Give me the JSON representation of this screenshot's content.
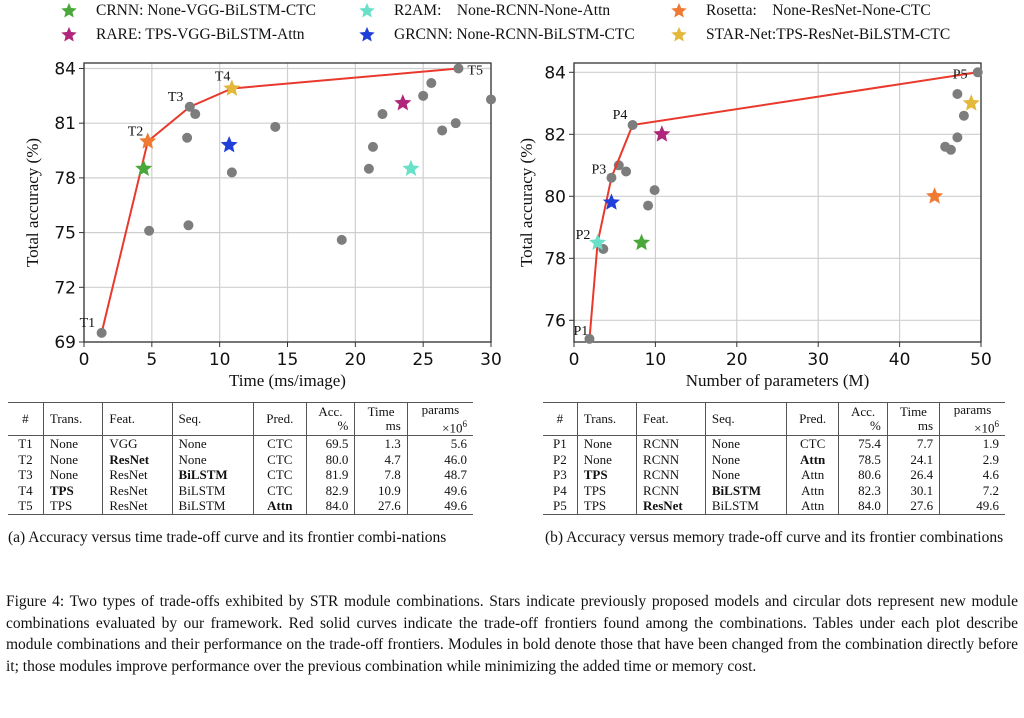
{
  "legend": [
    {
      "name": "CRNN",
      "label": "CRNN: None-VGG-BiLSTM-CTC",
      "color": "#4aa83a"
    },
    {
      "name": "RARE",
      "label": "RARE: TPS-VGG-BiLSTM-Attn",
      "color": "#b0267a"
    },
    {
      "name": "R2AM",
      "label": "R2AM:    None-RCNN-None-Attn",
      "color": "#6be0c8"
    },
    {
      "name": "GRCNN",
      "label": "GRCNN: None-RCNN-BiLSTM-CTC",
      "color": "#1f3fd8"
    },
    {
      "name": "Rosetta",
      "label": "Rosetta:    None-ResNet-None-CTC",
      "color": "#ee7a33"
    },
    {
      "name": "STAR-Net",
      "label": "STAR-Net:TPS-ResNet-BiLSTM-CTC",
      "color": "#e3b83b"
    }
  ],
  "chart_data": [
    {
      "type": "scatter",
      "title": "",
      "xlabel": "Time (ms/image)",
      "ylabel": "Total accuracy (%)",
      "xlim": [
        0,
        30
      ],
      "ylim": [
        69,
        84.3
      ],
      "xticks": [
        "0",
        "5",
        "10",
        "15",
        "20",
        "25",
        "30"
      ],
      "yticks": [
        "69",
        "72",
        "75",
        "78",
        "81",
        "84"
      ],
      "grid": true,
      "frontier_color": "#e8392c",
      "frontier": [
        {
          "label": "T1",
          "x": 1.3,
          "y": 69.5
        },
        {
          "label": "T2",
          "x": 4.7,
          "y": 80.0
        },
        {
          "label": "T3",
          "x": 7.8,
          "y": 81.9
        },
        {
          "label": "T4",
          "x": 10.9,
          "y": 82.9
        },
        {
          "label": "T5",
          "x": 27.6,
          "y": 84.0
        }
      ],
      "dots": [
        {
          "x": 4.8,
          "y": 75.1
        },
        {
          "x": 7.7,
          "y": 75.4
        },
        {
          "x": 7.6,
          "y": 80.2
        },
        {
          "x": 8.2,
          "y": 81.5
        },
        {
          "x": 10.9,
          "y": 78.3
        },
        {
          "x": 14.1,
          "y": 80.8
        },
        {
          "x": 19.0,
          "y": 74.6
        },
        {
          "x": 21.0,
          "y": 78.5
        },
        {
          "x": 21.3,
          "y": 79.7
        },
        {
          "x": 22.0,
          "y": 81.5
        },
        {
          "x": 25.0,
          "y": 82.5
        },
        {
          "x": 25.6,
          "y": 83.2
        },
        {
          "x": 26.4,
          "y": 80.6
        },
        {
          "x": 27.4,
          "y": 81.0
        },
        {
          "x": 30.0,
          "y": 82.3
        }
      ],
      "stars": [
        {
          "model": "CRNN",
          "x": 4.4,
          "y": 78.5
        },
        {
          "model": "Rosetta",
          "x": 4.7,
          "y": 80.0
        },
        {
          "model": "STAR-Net",
          "x": 10.9,
          "y": 82.9
        },
        {
          "model": "GRCNN",
          "x": 10.7,
          "y": 79.8
        },
        {
          "model": "RARE",
          "x": 23.5,
          "y": 82.1
        },
        {
          "model": "R2AM",
          "x": 24.1,
          "y": 78.5
        }
      ]
    },
    {
      "type": "scatter",
      "title": "",
      "xlabel": "Number of parameters (M)",
      "ylabel": "Total accuracy (%)",
      "xlim": [
        0,
        50
      ],
      "ylim": [
        75.3,
        84.3
      ],
      "xticks": [
        "0",
        "10",
        "20",
        "30",
        "40",
        "50"
      ],
      "yticks": [
        "76",
        "78",
        "80",
        "82",
        "84"
      ],
      "grid": true,
      "frontier_color": "#e8392c",
      "frontier": [
        {
          "label": "P1",
          "x": 1.9,
          "y": 75.4
        },
        {
          "label": "P2",
          "x": 2.9,
          "y": 78.5
        },
        {
          "label": "P3",
          "x": 4.6,
          "y": 80.6
        },
        {
          "label": "P4",
          "x": 7.2,
          "y": 82.3
        },
        {
          "label": "P5",
          "x": 49.6,
          "y": 84.0
        }
      ],
      "dots": [
        {
          "x": 3.6,
          "y": 78.3
        },
        {
          "x": 5.5,
          "y": 81.0
        },
        {
          "x": 6.4,
          "y": 80.8
        },
        {
          "x": 9.1,
          "y": 79.7
        },
        {
          "x": 9.9,
          "y": 80.2
        },
        {
          "x": 45.6,
          "y": 81.6
        },
        {
          "x": 46.3,
          "y": 81.5
        },
        {
          "x": 47.1,
          "y": 81.9
        },
        {
          "x": 47.9,
          "y": 82.6
        },
        {
          "x": 47.1,
          "y": 83.3
        }
      ],
      "stars": [
        {
          "model": "R2AM",
          "x": 2.9,
          "y": 78.5
        },
        {
          "model": "GRCNN",
          "x": 4.6,
          "y": 79.8
        },
        {
          "model": "CRNN",
          "x": 8.3,
          "y": 78.5
        },
        {
          "model": "RARE",
          "x": 10.8,
          "y": 82.0
        },
        {
          "model": "Rosetta",
          "x": 44.3,
          "y": 80.0
        },
        {
          "model": "STAR-Net",
          "x": 48.8,
          "y": 83.0
        }
      ]
    }
  ],
  "tables": [
    {
      "headers": {
        "num": "#",
        "trans": "Trans.",
        "feat": "Feat.",
        "seq": "Seq.",
        "pred": "Pred.",
        "acc1": "Acc.",
        "acc2": "%",
        "time1": "Time",
        "time2": "ms",
        "params1": "params",
        "params2": "×10",
        "params_exp": "6"
      },
      "rows": [
        {
          "id": "T1",
          "trans": "None",
          "feat": "VGG",
          "seq": "None",
          "pred": "CTC",
          "acc": "69.5",
          "time": "1.3",
          "params": "5.6",
          "bold": []
        },
        {
          "id": "T2",
          "trans": "None",
          "feat": "ResNet",
          "seq": "None",
          "pred": "CTC",
          "acc": "80.0",
          "time": "4.7",
          "params": "46.0",
          "bold": [
            "feat"
          ]
        },
        {
          "id": "T3",
          "trans": "None",
          "feat": "ResNet",
          "seq": "BiLSTM",
          "pred": "CTC",
          "acc": "81.9",
          "time": "7.8",
          "params": "48.7",
          "bold": [
            "seq"
          ]
        },
        {
          "id": "T4",
          "trans": "TPS",
          "feat": "ResNet",
          "seq": "BiLSTM",
          "pred": "CTC",
          "acc": "82.9",
          "time": "10.9",
          "params": "49.6",
          "bold": [
            "trans"
          ]
        },
        {
          "id": "T5",
          "trans": "TPS",
          "feat": "ResNet",
          "seq": "BiLSTM",
          "pred": "Attn",
          "acc": "84.0",
          "time": "27.6",
          "params": "49.6",
          "bold": [
            "pred"
          ]
        }
      ]
    },
    {
      "headers": {
        "num": "#",
        "trans": "Trans.",
        "feat": "Feat.",
        "seq": "Seq.",
        "pred": "Pred.",
        "acc1": "Acc.",
        "acc2": "%",
        "time1": "Time",
        "time2": "ms",
        "params1": "params",
        "params2": "×10",
        "params_exp": "6"
      },
      "rows": [
        {
          "id": "P1",
          "trans": "None",
          "feat": "RCNN",
          "seq": "None",
          "pred": "CTC",
          "acc": "75.4",
          "time": "7.7",
          "params": "1.9",
          "bold": []
        },
        {
          "id": "P2",
          "trans": "None",
          "feat": "RCNN",
          "seq": "None",
          "pred": "Attn",
          "acc": "78.5",
          "time": "24.1",
          "params": "2.9",
          "bold": [
            "pred"
          ]
        },
        {
          "id": "P3",
          "trans": "TPS",
          "feat": "RCNN",
          "seq": "None",
          "pred": "Attn",
          "acc": "80.6",
          "time": "26.4",
          "params": "4.6",
          "bold": [
            "trans"
          ]
        },
        {
          "id": "P4",
          "trans": "TPS",
          "feat": "RCNN",
          "seq": "BiLSTM",
          "pred": "Attn",
          "acc": "82.3",
          "time": "30.1",
          "params": "7.2",
          "bold": [
            "seq"
          ]
        },
        {
          "id": "P5",
          "trans": "TPS",
          "feat": "ResNet",
          "seq": "BiLSTM",
          "pred": "Attn",
          "acc": "84.0",
          "time": "27.6",
          "params": "49.6",
          "bold": [
            "feat"
          ]
        }
      ]
    }
  ],
  "subcaptions": {
    "a": "(a) Accuracy versus time trade-off curve and its frontier combi-nations",
    "b": "(b) Accuracy versus memory trade-off curve and its frontier combinations"
  },
  "figure_caption": "Figure 4: Two types of trade-offs exhibited by STR module combinations. Stars indicate previously proposed models and circular dots represent new module combinations evaluated by our framework. Red solid curves indicate the trade-off frontiers found among the combinations. Tables under each plot describe module combinations and their performance on the trade-off frontiers. Modules in bold denote those that have been changed from the combination directly before it; those modules improve performance over the previous combination while minimizing the added time or memory cost."
}
